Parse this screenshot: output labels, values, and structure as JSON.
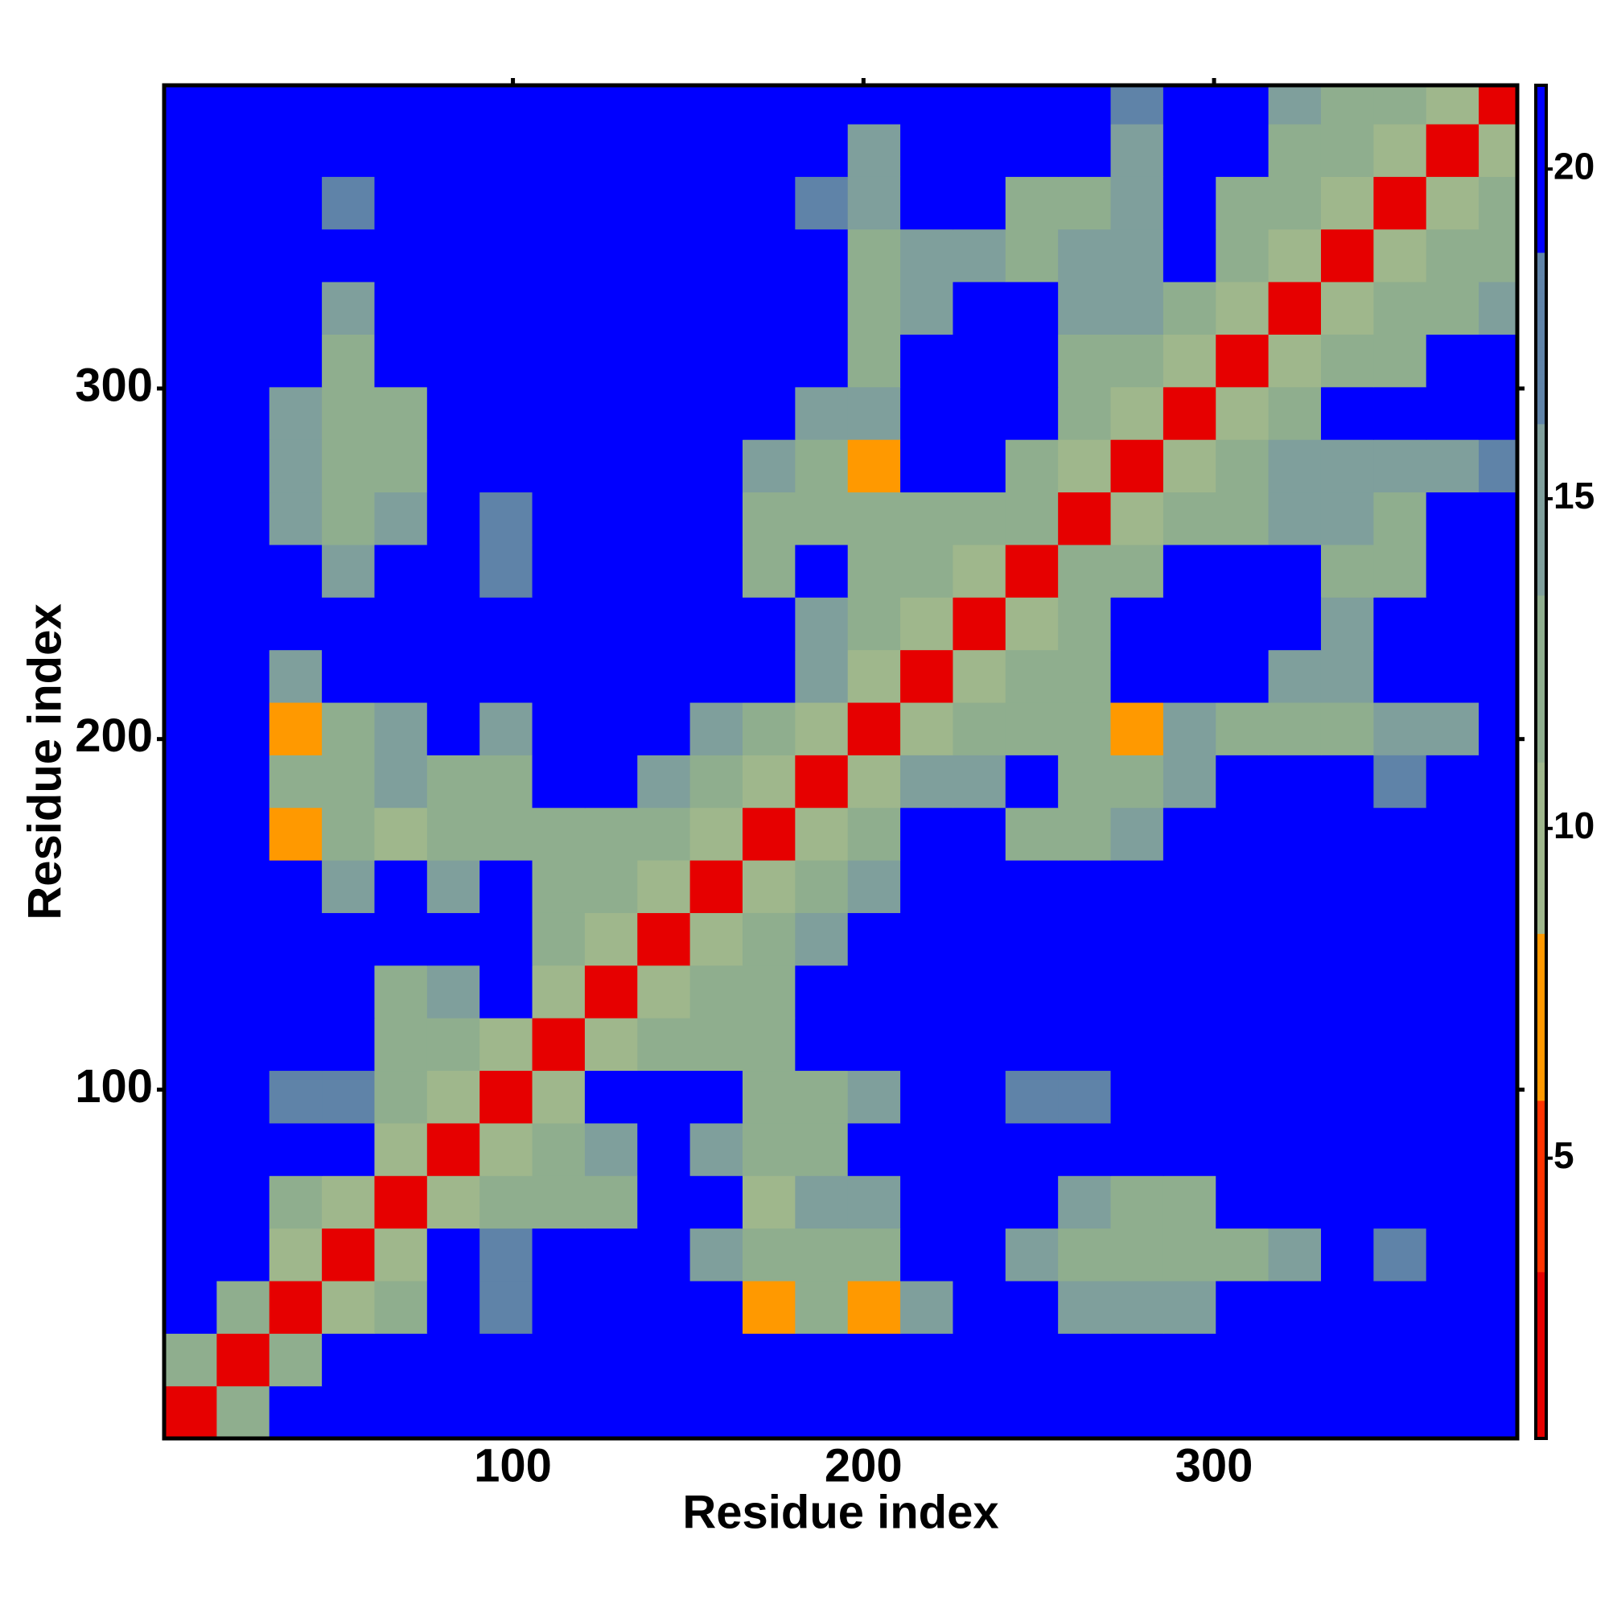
{
  "chart_data": {
    "type": "heatmap",
    "xlabel": "Residue index",
    "ylabel": "Residue index",
    "x": [
      8,
      23,
      38,
      53,
      68,
      83,
      98,
      113,
      128,
      143,
      158,
      173,
      188,
      203,
      218,
      233,
      248,
      263,
      278,
      293,
      308,
      323,
      338,
      353,
      368,
      383
    ],
    "y": [
      8,
      23,
      38,
      53,
      68,
      83,
      98,
      113,
      128,
      143,
      158,
      173,
      188,
      203,
      218,
      233,
      248,
      263,
      278,
      293,
      308,
      323,
      338,
      353,
      368,
      383
    ],
    "z": [
      [
        3,
        12,
        21,
        21,
        21,
        21,
        21,
        21,
        21,
        21,
        21,
        21,
        21,
        21,
        21,
        21,
        21,
        21,
        21,
        21,
        21,
        21,
        21,
        21,
        21,
        21
      ],
      [
        12,
        3,
        12,
        21,
        21,
        21,
        21,
        21,
        21,
        21,
        21,
        21,
        21,
        21,
        21,
        21,
        21,
        21,
        21,
        21,
        21,
        21,
        21,
        21,
        21,
        21
      ],
      [
        21,
        12,
        3,
        11,
        12,
        21,
        17,
        21,
        21,
        21,
        21,
        7,
        13,
        7,
        16,
        21,
        21,
        15,
        14,
        15,
        21,
        21,
        21,
        21,
        21,
        21
      ],
      [
        21,
        21,
        11,
        3,
        11,
        21,
        17,
        21,
        21,
        21,
        14,
        12,
        13,
        13,
        21,
        21,
        14,
        13,
        12,
        12,
        13,
        16,
        21,
        18,
        21,
        21
      ],
      [
        21,
        21,
        12,
        11,
        3,
        11,
        12,
        13,
        13,
        21,
        21,
        10,
        14,
        15,
        21,
        21,
        21,
        14,
        13,
        13,
        21,
        21,
        21,
        21,
        21,
        21
      ],
      [
        21,
        21,
        21,
        21,
        11,
        3,
        11,
        12,
        14,
        21,
        14,
        13,
        13,
        21,
        21,
        21,
        21,
        21,
        21,
        21,
        21,
        21,
        21,
        21,
        21,
        21
      ],
      [
        21,
        21,
        17,
        17,
        12,
        11,
        3,
        11,
        21,
        21,
        21,
        13,
        13,
        14,
        21,
        21,
        18,
        18,
        21,
        21,
        21,
        21,
        21,
        21,
        21,
        21
      ],
      [
        21,
        21,
        21,
        21,
        13,
        12,
        11,
        3,
        11,
        12,
        12,
        13,
        21,
        21,
        21,
        21,
        21,
        21,
        21,
        21,
        21,
        21,
        21,
        21,
        21,
        21
      ],
      [
        21,
        21,
        21,
        21,
        13,
        14,
        21,
        11,
        3,
        11,
        12,
        13,
        21,
        21,
        21,
        21,
        21,
        21,
        21,
        21,
        21,
        21,
        21,
        21,
        21,
        21
      ],
      [
        21,
        21,
        21,
        21,
        21,
        21,
        21,
        12,
        11,
        3,
        11,
        12,
        14,
        21,
        21,
        21,
        21,
        21,
        21,
        21,
        21,
        21,
        21,
        21,
        21,
        21
      ],
      [
        21,
        21,
        21,
        14,
        21,
        14,
        21,
        12,
        12,
        11,
        3,
        11,
        12,
        15,
        21,
        21,
        21,
        21,
        21,
        21,
        21,
        21,
        21,
        21,
        21,
        21
      ],
      [
        21,
        21,
        7,
        12,
        10,
        13,
        13,
        13,
        13,
        12,
        11,
        3,
        11,
        13,
        21,
        21,
        13,
        13,
        15,
        21,
        21,
        21,
        21,
        21,
        21,
        21
      ],
      [
        21,
        21,
        13,
        13,
        14,
        13,
        13,
        21,
        21,
        14,
        12,
        11,
        3,
        11,
        14,
        16,
        21,
        12,
        13,
        14,
        21,
        21,
        21,
        17,
        21,
        21
      ],
      [
        21,
        21,
        7,
        13,
        15,
        21,
        14,
        21,
        21,
        21,
        15,
        13,
        11,
        3,
        11,
        12,
        13,
        13,
        7,
        14,
        13,
        13,
        13,
        14,
        15,
        21
      ],
      [
        21,
        21,
        16,
        21,
        21,
        21,
        21,
        21,
        21,
        21,
        21,
        21,
        14,
        11,
        3,
        11,
        12,
        13,
        21,
        21,
        21,
        15,
        14,
        21,
        21,
        21
      ],
      [
        21,
        21,
        21,
        21,
        21,
        21,
        21,
        21,
        21,
        21,
        21,
        21,
        16,
        12,
        11,
        3,
        11,
        12,
        21,
        21,
        21,
        21,
        14,
        21,
        21,
        21
      ],
      [
        21,
        21,
        21,
        14,
        21,
        21,
        18,
        21,
        21,
        21,
        21,
        13,
        21,
        13,
        12,
        11,
        3,
        12,
        13,
        21,
        21,
        21,
        13,
        13,
        21,
        21
      ],
      [
        21,
        21,
        15,
        13,
        14,
        21,
        18,
        21,
        21,
        21,
        21,
        13,
        12,
        13,
        13,
        12,
        12,
        3,
        11,
        12,
        12,
        15,
        14,
        13,
        21,
        21
      ],
      [
        21,
        21,
        14,
        12,
        13,
        21,
        21,
        21,
        21,
        21,
        21,
        15,
        13,
        7,
        21,
        21,
        13,
        11,
        3,
        11,
        13,
        14,
        14,
        15,
        15,
        17
      ],
      [
        21,
        21,
        15,
        12,
        13,
        21,
        21,
        21,
        21,
        21,
        21,
        21,
        14,
        14,
        21,
        21,
        21,
        12,
        11,
        3,
        11,
        12,
        21,
        21,
        21,
        21
      ],
      [
        21,
        21,
        21,
        13,
        21,
        21,
        21,
        21,
        21,
        21,
        21,
        21,
        21,
        13,
        21,
        21,
        21,
        12,
        13,
        11,
        3,
        11,
        12,
        13,
        21,
        21
      ],
      [
        21,
        21,
        21,
        16,
        21,
        21,
        21,
        21,
        21,
        21,
        21,
        21,
        21,
        13,
        15,
        21,
        21,
        15,
        14,
        12,
        11,
        3,
        11,
        12,
        13,
        14
      ],
      [
        21,
        21,
        21,
        21,
        21,
        21,
        21,
        21,
        21,
        21,
        21,
        21,
        21,
        13,
        14,
        14,
        13,
        14,
        14,
        21,
        12,
        11,
        3,
        11,
        12,
        13
      ],
      [
        21,
        21,
        21,
        18,
        21,
        21,
        21,
        21,
        21,
        21,
        21,
        21,
        17,
        14,
        21,
        21,
        13,
        13,
        15,
        21,
        13,
        12,
        11,
        3,
        11,
        12
      ],
      [
        21,
        21,
        21,
        21,
        21,
        21,
        21,
        21,
        21,
        21,
        21,
        21,
        21,
        15,
        21,
        21,
        21,
        21,
        15,
        21,
        21,
        13,
        12,
        11,
        3,
        11
      ],
      [
        21,
        21,
        21,
        21,
        21,
        21,
        21,
        21,
        21,
        21,
        21,
        21,
        21,
        21,
        21,
        21,
        21,
        21,
        17,
        21,
        21,
        14,
        13,
        12,
        11,
        3
      ]
    ],
    "xlim": [
      0.5,
      386.5
    ],
    "ylim": [
      0.5,
      386.5
    ],
    "xticks": [
      100,
      200,
      300
    ],
    "yticks": [
      100,
      200,
      300
    ],
    "zlim": [
      0.75,
      21.27
    ],
    "colorbar_ticks": [
      5,
      10,
      15,
      20
    ],
    "colors": [
      "#e60000",
      "#ff3300",
      "#ff9900",
      "#9fb78c",
      "#8fae8e",
      "#7f9f9c",
      "#5f83a8",
      "#0000ff"
    ]
  }
}
